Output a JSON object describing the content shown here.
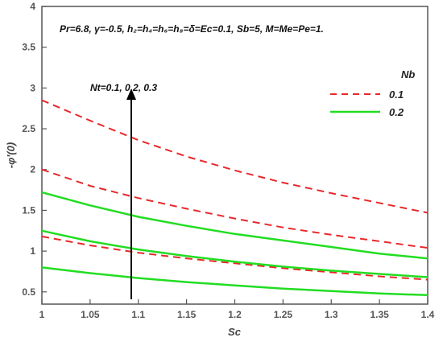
{
  "chart_data": {
    "type": "line",
    "xlabel": "Sc",
    "ylabel": "-φ′(0)",
    "xlim": [
      1,
      1.4
    ],
    "ylim": [
      0.35,
      4
    ],
    "x_ticks": [
      "1",
      "1.05",
      "1.1",
      "1.15",
      "1.2",
      "1.25",
      "1.3",
      "1.35",
      "1.4"
    ],
    "y_ticks": [
      "0.5",
      "1",
      "1.5",
      "2",
      "2.5",
      "3",
      "3.5",
      "4"
    ],
    "grid": false,
    "parameters_text": "Pr=6.8, γ=-0.5, h₂=h₄=h₆=h₈=δ=Ec=0.1, Sb=5, M=Me=Pe=1.",
    "arrow_annotation": "Nt=0.1, 0.2, 0.3",
    "legend": {
      "title": "Nb",
      "position": "top-right",
      "entries": [
        {
          "label": "0.1",
          "color": "#e8282b",
          "dash": "dashed"
        },
        {
          "label": "0.2",
          "color": "#22dd22",
          "dash": "solid"
        }
      ]
    },
    "x": [
      1.0,
      1.05,
      1.1,
      1.15,
      1.2,
      1.25,
      1.3,
      1.35,
      1.4
    ],
    "series": [
      {
        "nb": "0.1",
        "nt": "0.3",
        "color": "#e8282b",
        "dash": "dashed",
        "values": [
          2.85,
          2.6,
          2.36,
          2.16,
          1.99,
          1.84,
          1.71,
          1.59,
          1.47
        ]
      },
      {
        "nb": "0.1",
        "nt": "0.2",
        "color": "#e8282b",
        "dash": "dashed",
        "values": [
          2.0,
          1.8,
          1.65,
          1.52,
          1.4,
          1.29,
          1.2,
          1.12,
          1.04
        ]
      },
      {
        "nb": "0.1",
        "nt": "0.1",
        "color": "#e8282b",
        "dash": "dashed",
        "values": [
          1.18,
          1.07,
          0.98,
          0.91,
          0.85,
          0.79,
          0.74,
          0.69,
          0.65
        ]
      },
      {
        "nb": "0.2",
        "nt": "0.3",
        "color": "#22dd22",
        "dash": "solid",
        "values": [
          1.72,
          1.56,
          1.42,
          1.31,
          1.21,
          1.13,
          1.05,
          0.97,
          0.91
        ]
      },
      {
        "nb": "0.2",
        "nt": "0.2",
        "color": "#22dd22",
        "dash": "solid",
        "values": [
          1.25,
          1.12,
          1.02,
          0.94,
          0.87,
          0.81,
          0.76,
          0.72,
          0.68
        ]
      },
      {
        "nb": "0.2",
        "nt": "0.1",
        "color": "#22dd22",
        "dash": "solid",
        "values": [
          0.8,
          0.73,
          0.67,
          0.62,
          0.58,
          0.54,
          0.51,
          0.48,
          0.46
        ]
      }
    ]
  }
}
